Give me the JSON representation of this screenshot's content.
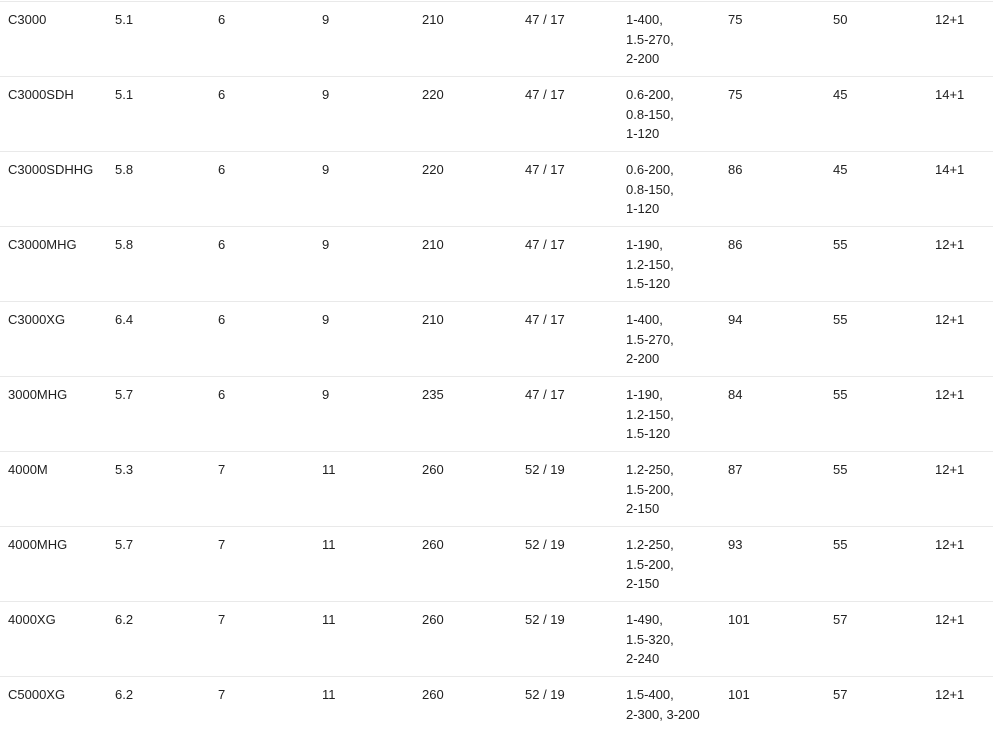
{
  "page": {
    "background_color": "#ffffff",
    "text_color": "#212121",
    "row_border_color": "#e9e9e9"
  },
  "table": {
    "rows": [
      {
        "cells": [
          [
            "C3000"
          ],
          [
            "5.1"
          ],
          [
            "6"
          ],
          [
            "9"
          ],
          [
            "210"
          ],
          [
            "47 / 17"
          ],
          [
            "1-400,",
            "1.5-270,",
            "2-200"
          ],
          [
            "75"
          ],
          [
            "50"
          ],
          [
            "12+1"
          ]
        ]
      },
      {
        "cells": [
          [
            "C3000SDH"
          ],
          [
            "5.1"
          ],
          [
            "6"
          ],
          [
            "9"
          ],
          [
            "220"
          ],
          [
            "47 / 17"
          ],
          [
            "0.6-200,",
            "0.8-150,",
            "1-120"
          ],
          [
            "75"
          ],
          [
            "45"
          ],
          [
            "14+1"
          ]
        ]
      },
      {
        "cells": [
          [
            "C3000SDHHG"
          ],
          [
            "5.8"
          ],
          [
            "6"
          ],
          [
            "9"
          ],
          [
            "220"
          ],
          [
            "47 / 17"
          ],
          [
            "0.6-200,",
            "0.8-150,",
            "1-120"
          ],
          [
            "86"
          ],
          [
            "45"
          ],
          [
            "14+1"
          ]
        ]
      },
      {
        "cells": [
          [
            "C3000MHG"
          ],
          [
            "5.8"
          ],
          [
            "6"
          ],
          [
            "9"
          ],
          [
            "210"
          ],
          [
            "47 / 17"
          ],
          [
            "1-190,",
            "1.2-150,",
            "1.5-120"
          ],
          [
            "86"
          ],
          [
            "55"
          ],
          [
            "12+1"
          ]
        ]
      },
      {
        "cells": [
          [
            "C3000XG"
          ],
          [
            "6.4"
          ],
          [
            "6"
          ],
          [
            "9"
          ],
          [
            "210"
          ],
          [
            "47 / 17"
          ],
          [
            "1-400,",
            "1.5-270,",
            "2-200"
          ],
          [
            "94"
          ],
          [
            "55"
          ],
          [
            "12+1"
          ]
        ]
      },
      {
        "cells": [
          [
            "3000MHG"
          ],
          [
            "5.7"
          ],
          [
            "6"
          ],
          [
            "9"
          ],
          [
            "235"
          ],
          [
            "47 / 17"
          ],
          [
            "1-190,",
            "1.2-150,",
            "1.5-120"
          ],
          [
            "84"
          ],
          [
            "55"
          ],
          [
            "12+1"
          ]
        ]
      },
      {
        "cells": [
          [
            "4000M"
          ],
          [
            "5.3"
          ],
          [
            "7"
          ],
          [
            "11"
          ],
          [
            "260"
          ],
          [
            "52 / 19"
          ],
          [
            "1.2-250,",
            "1.5-200,",
            "2-150"
          ],
          [
            "87"
          ],
          [
            "55"
          ],
          [
            "12+1"
          ]
        ]
      },
      {
        "cells": [
          [
            "4000MHG"
          ],
          [
            "5.7"
          ],
          [
            "7"
          ],
          [
            "11"
          ],
          [
            "260"
          ],
          [
            "52 / 19"
          ],
          [
            "1.2-250,",
            "1.5-200,",
            "2-150"
          ],
          [
            "93"
          ],
          [
            "55"
          ],
          [
            "12+1"
          ]
        ]
      },
      {
        "cells": [
          [
            "4000XG"
          ],
          [
            "6.2"
          ],
          [
            "7"
          ],
          [
            "11"
          ],
          [
            "260"
          ],
          [
            "52 / 19"
          ],
          [
            "1-490,",
            "1.5-320,",
            "2-240"
          ],
          [
            "101"
          ],
          [
            "57"
          ],
          [
            "12+1"
          ]
        ]
      },
      {
        "cells": [
          [
            "C5000XG"
          ],
          [
            "6.2"
          ],
          [
            "7"
          ],
          [
            "11"
          ],
          [
            "260"
          ],
          [
            "52 / 19"
          ],
          [
            "1.5-400,",
            "2-300, 3-200"
          ],
          [
            "101"
          ],
          [
            "57"
          ],
          [
            "12+1"
          ]
        ]
      }
    ]
  }
}
